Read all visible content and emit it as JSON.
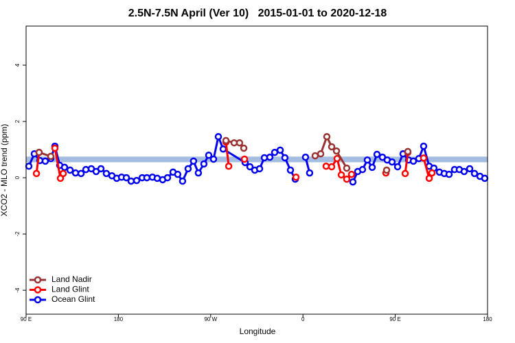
{
  "chart_data": {
    "type": "line",
    "title": "2.5N-7.5N April (Ver 10)   2015-01-01 to 2020-12-18",
    "x_label": "Longitude",
    "y_label": "XCO2 - MLO trend (ppm)",
    "xlim": [
      90,
      540
    ],
    "xticks": [
      {
        "value": 90,
        "label": "90 E"
      },
      {
        "value": 180,
        "label": "180"
      },
      {
        "value": 270,
        "label": "90 W"
      },
      {
        "value": 360,
        "label": "0"
      },
      {
        "value": 450,
        "label": "90 E"
      },
      {
        "value": 540,
        "label": "180"
      }
    ],
    "ylim": [
      -4.85,
      5.39
    ],
    "yticks": [
      -4,
      -2,
      0,
      2,
      4
    ],
    "reference_band": [
      0.55,
      0.75
    ],
    "band_color": "#a4bde0",
    "legend": "bottom-left",
    "series": [
      {
        "name": "Land Nadir",
        "color": "#993333",
        "x": [
          102.7,
          114.1,
          null,
          284.9,
          292.9,
          298.2,
          302.3,
          null,
          371.9,
          377.3,
          383.3,
          388.0,
          392.7,
          402.7,
          null,
          441.6,
          null,
          462.3
        ],
        "values": [
          0.9,
          0.76,
          null,
          1.32,
          1.24,
          1.24,
          1.05,
          null,
          0.78,
          0.85,
          1.46,
          1.1,
          0.95,
          0.34,
          null,
          0.27,
          null,
          0.93
        ]
      },
      {
        "name": "Land Glint",
        "color": "#ff0000",
        "x": [
          100.1,
          102.7,
          null,
          118.1,
          123.5,
          126.2,
          null,
          284.9,
          287.6,
          null,
          303.0,
          null,
          353.2,
          null,
          382.6,
          388.0,
          393.3,
          397.4,
          402.7,
          407.4,
          null,
          440.9,
          null,
          459.7,
          462.3,
          null,
          477.7,
          483.1,
          485.8
        ],
        "values": [
          0.15,
          0.9,
          null,
          1.05,
          -0.02,
          0.15,
          null,
          1.27,
          0.41,
          null,
          0.66,
          null,
          0.02,
          null,
          0.41,
          0.39,
          0.68,
          0.1,
          -0.05,
          0.12,
          null,
          0.17,
          null,
          0.15,
          0.9,
          null,
          0.7,
          -0.02,
          0.17
        ]
      },
      {
        "name": "Ocean Glint",
        "color": "#0000ee",
        "x": [
          92.7,
          98.0,
          103.4,
          108.7,
          114.1,
          118.1,
          122.8,
          127.5,
          132.9,
          138.2,
          143.6,
          148.3,
          153.6,
          158.3,
          163.0,
          168.3,
          173.7,
          178.4,
          183.1,
          187.8,
          192.4,
          197.8,
          203.2,
          207.8,
          213.2,
          217.9,
          223.2,
          227.9,
          233.3,
          237.9,
          242.6,
          248.0,
          253.3,
          258.0,
          263.4,
          268.1,
          272.8,
          277.5,
          282.2,
          303.6,
          308.3,
          313.0,
          317.7,
          322.4,
          327.7,
          332.4,
          337.8,
          342.4,
          347.8,
          352.5,
          null,
          362.5,
          366.5,
          null,
          408.7,
          413.4,
          418.1,
          422.8,
          427.5,
          432.2,
          437.5,
          442.2,
          446.9,
          452.3,
          457.6,
          463.0,
          467.7,
          473.0,
          477.7,
          483.1,
          487.7,
          493.1,
          497.8,
          502.5,
          507.8,
          512.5,
          517.2,
          522.6,
          527.3,
          532.6,
          537.3
        ],
        "values": [
          0.41,
          0.85,
          0.61,
          0.59,
          0.68,
          1.12,
          0.44,
          0.37,
          0.27,
          0.17,
          0.15,
          0.29,
          0.32,
          0.22,
          0.32,
          0.15,
          0.07,
          -0.02,
          0.02,
          0,
          -0.12,
          -0.1,
          0,
          0,
          0.02,
          -0.02,
          -0.07,
          0,
          0.2,
          0.12,
          -0.12,
          0.32,
          0.59,
          0.17,
          0.49,
          0.8,
          0.66,
          1.46,
          1.02,
          0.54,
          0.39,
          0.27,
          0.32,
          0.71,
          0.73,
          0.9,
          0.98,
          0.71,
          0.27,
          -0.05,
          null,
          0.73,
          0.17,
          null,
          -0.15,
          0.22,
          0.29,
          0.63,
          0.37,
          0.83,
          0.73,
          0.63,
          0.56,
          0.39,
          0.85,
          0.63,
          0.59,
          0.68,
          1.12,
          0.41,
          0.34,
          0.2,
          0.15,
          0.12,
          0.29,
          0.29,
          0.22,
          0.32,
          0.15,
          0.05,
          -0.02
        ]
      }
    ]
  }
}
